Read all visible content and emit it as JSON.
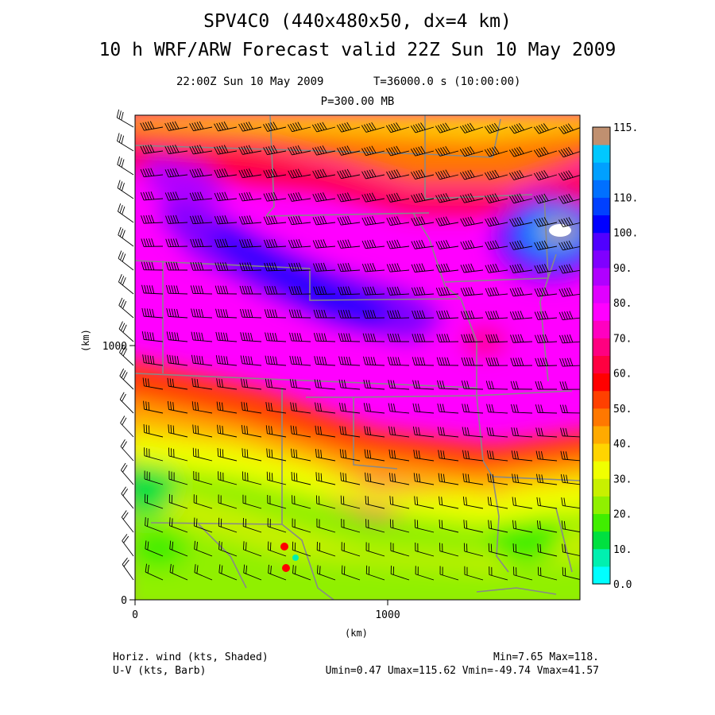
{
  "titles": {
    "line1": "SPV4C0 (440x480x50, dx=4 km)",
    "line2": "10 h WRF/ARW Forecast valid 22Z Sun 10 May 2009",
    "valid_time": "22:00Z Sun 10 May 2009",
    "model_time": "T=36000.0 s (10:00:00)",
    "level": "P=300.00 MB"
  },
  "axes": {
    "x_label": "(km)",
    "y_label": "(km)",
    "x_ticks": [
      "0",
      "1000"
    ],
    "y_ticks": [
      "0",
      "1000"
    ]
  },
  "colorbar": {
    "labels": [
      "0.0",
      "10.",
      "20.",
      "30.",
      "40.",
      "50.",
      "60.",
      "70.",
      "80.",
      "90.",
      "100.",
      "110.",
      "115."
    ],
    "colors": [
      "#00ffff",
      "#00f0b0",
      "#00e040",
      "#40ee00",
      "#90f000",
      "#c8f000",
      "#f0ff00",
      "#ffd400",
      "#ffaa00",
      "#ff7800",
      "#ff4000",
      "#ff0000",
      "#ff0040",
      "#ff0080",
      "#ff00c0",
      "#ff00ff",
      "#e000ff",
      "#b000ff",
      "#8000ff",
      "#5000ff",
      "#0000ff",
      "#0040ff",
      "#0070ff",
      "#00a0ff",
      "#00c8ff",
      "#c09070"
    ]
  },
  "footer": {
    "left1": "Horiz. wind (kts, Shaded)",
    "left2": "U-V (kts, Barb)",
    "right1": "Min=7.65 Max=118.",
    "right2": "Umin=0.47 Umax=115.62 Vmin=-49.74 Vmax=41.57"
  }
}
